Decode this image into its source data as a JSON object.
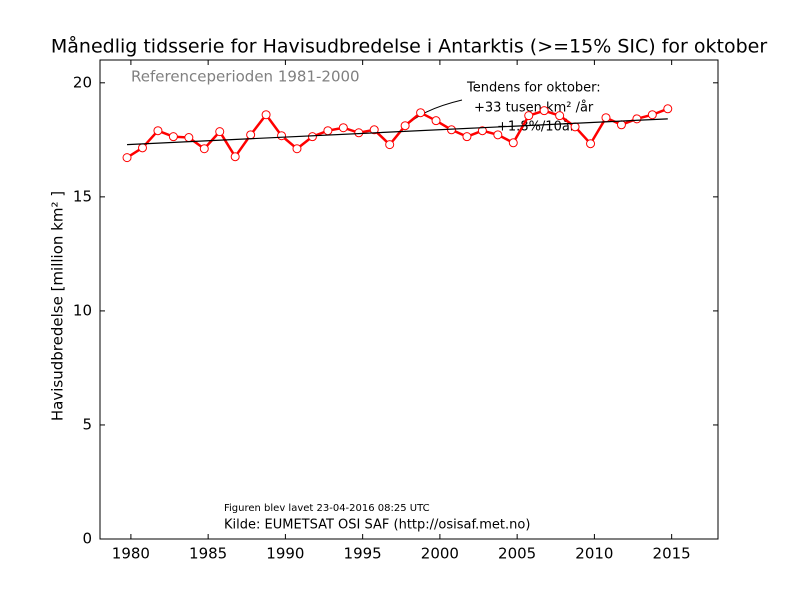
{
  "chart_data": {
    "type": "line",
    "title": "Månedlig tidsserie for Havisudbredelse i Antarktis (>=15% SIC) for oktober",
    "subtitle": "Referenceperioden 1981-2000",
    "ylabel": "Havisudbredelse [million km² ]",
    "annotation": [
      "Tendens for oktober:",
      "+33 tusen km² /år",
      "+1.8%/10år"
    ],
    "footnotes": [
      "Figuren blev lavet 23-04-2016 08:25 UTC",
      "Kilde: EUMETSAT OSI SAF (http://osisaf.met.no)"
    ],
    "x": [
      1979.75,
      1980.75,
      1981.75,
      1982.75,
      1983.75,
      1984.75,
      1985.75,
      1986.75,
      1987.75,
      1988.75,
      1989.75,
      1990.75,
      1991.75,
      1992.75,
      1993.75,
      1994.75,
      1995.75,
      1996.75,
      1997.75,
      1998.75,
      1999.75,
      2000.75,
      2001.75,
      2002.75,
      2003.75,
      2004.75,
      2005.75,
      2006.75,
      2007.75,
      2008.75,
      2009.75,
      2010.75,
      2011.75,
      2012.75,
      2013.75,
      2014.75
    ],
    "series": [
      {
        "color": "#ff0000",
        "values": [
          16.72,
          17.15,
          17.9,
          17.64,
          17.6,
          17.11,
          17.86,
          16.76,
          17.72,
          18.6,
          17.68,
          17.11,
          17.64,
          17.9,
          18.03,
          17.81,
          17.94,
          17.29,
          18.12,
          18.69,
          18.34,
          17.94,
          17.64,
          17.9,
          17.72,
          17.37,
          18.56,
          18.78,
          18.56,
          18.07,
          17.33,
          18.47,
          18.16,
          18.42,
          18.6,
          18.86
        ]
      }
    ],
    "trend": {
      "color": "#000000",
      "x": [
        1979.75,
        2014.75
      ],
      "values": [
        17.29,
        18.42
      ]
    },
    "xlim": [
      1978,
      2018
    ],
    "ylim": [
      0,
      21
    ],
    "xticks": [
      1980,
      1985,
      1990,
      1995,
      2000,
      2005,
      2010,
      2015
    ],
    "yticks": [
      0,
      5,
      10,
      15,
      20
    ]
  }
}
